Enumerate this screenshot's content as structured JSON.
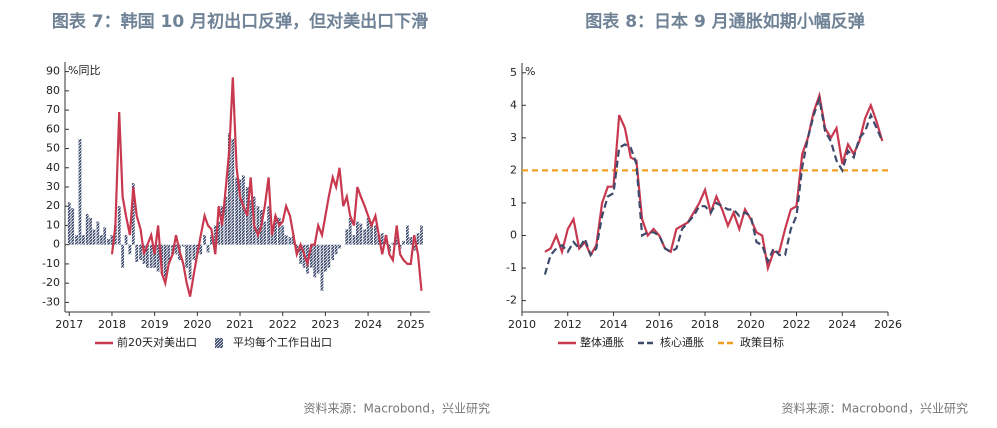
{
  "chart_data": [
    {
      "type": "combo",
      "title": "图表 7：韩国 10 月初出口反弹，但对美出口下滑",
      "source": "资料来源：Macrobond，兴业研究",
      "y_unit": "%同比",
      "xlim": [
        2017.4,
        2025.95
      ],
      "ylim": [
        -35,
        95
      ],
      "xticks": [
        {
          "value": 2017.5,
          "label": "2017"
        },
        {
          "value": 2018.5,
          "label": "2018"
        },
        {
          "value": 2019.5,
          "label": "2019"
        },
        {
          "value": 2020.5,
          "label": "2020"
        },
        {
          "value": 2021.5,
          "label": "2021"
        },
        {
          "value": 2022.5,
          "label": "2022"
        },
        {
          "value": 2023.5,
          "label": "2023"
        },
        {
          "value": 2024.5,
          "label": "2024"
        },
        {
          "value": 2025.5,
          "label": "2025"
        }
      ],
      "yticks": [
        -30,
        -20,
        -10,
        0,
        10,
        20,
        30,
        40,
        50,
        60,
        70,
        80,
        90
      ],
      "x": [
        2017.5,
        2017.58,
        2017.67,
        2017.75,
        2017.83,
        2017.92,
        2018,
        2018.08,
        2018.17,
        2018.25,
        2018.33,
        2018.42,
        2018.5,
        2018.58,
        2018.67,
        2018.75,
        2018.83,
        2018.92,
        2019,
        2019.08,
        2019.17,
        2019.25,
        2019.33,
        2019.42,
        2019.5,
        2019.58,
        2019.67,
        2019.75,
        2019.83,
        2019.92,
        2020,
        2020.08,
        2020.17,
        2020.25,
        2020.33,
        2020.42,
        2020.5,
        2020.58,
        2020.67,
        2020.75,
        2020.83,
        2020.92,
        2021,
        2021.08,
        2021.17,
        2021.25,
        2021.33,
        2021.42,
        2021.5,
        2021.58,
        2021.67,
        2021.75,
        2021.83,
        2021.92,
        2022,
        2022.08,
        2022.17,
        2022.25,
        2022.33,
        2022.42,
        2022.5,
        2022.58,
        2022.67,
        2022.75,
        2022.83,
        2022.92,
        2023,
        2023.08,
        2023.17,
        2023.25,
        2023.33,
        2023.42,
        2023.5,
        2023.58,
        2023.67,
        2023.75,
        2023.83,
        2023.92,
        2024,
        2024.08,
        2024.17,
        2024.25,
        2024.33,
        2024.42,
        2024.5,
        2024.58,
        2024.67,
        2024.75,
        2024.83,
        2024.92,
        2025,
        2025.08,
        2025.17,
        2025.25,
        2025.33,
        2025.42,
        2025.5,
        2025.58,
        2025.67,
        2025.75
      ],
      "series": [
        {
          "name": "平均每个工作日出口",
          "type": "bar",
          "color": "#3d4a6b",
          "values": [
            22,
            19,
            5,
            55,
            5,
            16,
            14,
            8,
            12,
            5,
            9,
            3,
            5,
            10,
            20,
            -12,
            5,
            -5,
            32,
            -9,
            -8,
            -10,
            -12,
            -12,
            -12,
            -14,
            -15,
            -17,
            -10,
            -5,
            -5,
            -8,
            -1,
            -12,
            -18,
            -8,
            -5,
            -5,
            5,
            -4,
            5,
            10,
            12,
            20,
            25,
            58,
            55,
            35,
            34,
            36,
            30,
            23,
            25,
            20,
            18,
            12,
            20,
            9,
            15,
            14,
            10,
            5,
            4,
            5,
            -5,
            -10,
            -12,
            -15,
            -12,
            -17,
            -15,
            -24,
            -14,
            -12,
            -8,
            -5,
            -2,
            0,
            8,
            14,
            5,
            12,
            11,
            8,
            14,
            12,
            10,
            5,
            6,
            5,
            -4,
            1,
            4,
            -2,
            2,
            10,
            4,
            -3,
            6,
            10
          ]
        },
        {
          "name": "前20天对美出口",
          "type": "line",
          "color": "#c8384f",
          "values": [
            null,
            null,
            null,
            null,
            null,
            null,
            null,
            null,
            null,
            null,
            null,
            null,
            -5,
            10,
            69,
            25,
            15,
            5,
            30,
            15,
            8,
            -5,
            0,
            5,
            -5,
            10,
            -15,
            -20,
            -10,
            -5,
            5,
            -3,
            -10,
            -20,
            -27,
            -15,
            -5,
            5,
            15,
            10,
            8,
            -5,
            20,
            10,
            30,
            50,
            87,
            40,
            25,
            20,
            15,
            35,
            10,
            5,
            10,
            20,
            35,
            5,
            15,
            10,
            12,
            20,
            15,
            5,
            -5,
            0,
            -5,
            -10,
            0,
            0,
            10,
            5,
            15,
            25,
            35,
            30,
            40,
            20,
            25,
            15,
            10,
            30,
            25,
            20,
            15,
            10,
            15,
            5,
            -5,
            5,
            -5,
            -8,
            10,
            -5,
            -8,
            -10,
            -10,
            5,
            -5,
            -24
          ]
        }
      ]
    },
    {
      "type": "line",
      "title": "图表 8：日本 9 月通胀如期小幅反弹",
      "source": "资料来源：Macrobond，兴业研究",
      "y_unit": "%",
      "xlim": [
        2010,
        2026
      ],
      "ylim": [
        -2.35,
        5.3
      ],
      "xticks": [
        2010,
        2012,
        2014,
        2016,
        2018,
        2020,
        2022,
        2024,
        2026
      ],
      "yticks": [
        -2,
        -1,
        0,
        1,
        2,
        3,
        4,
        5
      ],
      "x": [
        2011,
        2011.25,
        2011.5,
        2011.75,
        2012,
        2012.25,
        2012.5,
        2012.75,
        2013,
        2013.25,
        2013.5,
        2013.75,
        2014,
        2014.25,
        2014.5,
        2014.75,
        2015,
        2015.25,
        2015.5,
        2015.75,
        2016,
        2016.25,
        2016.5,
        2016.75,
        2017,
        2017.25,
        2017.5,
        2017.75,
        2018,
        2018.25,
        2018.5,
        2018.75,
        2019,
        2019.25,
        2019.5,
        2019.75,
        2020,
        2020.25,
        2020.5,
        2020.75,
        2021,
        2021.25,
        2021.5,
        2021.75,
        2022,
        2022.25,
        2022.5,
        2022.75,
        2023,
        2023.25,
        2023.5,
        2023.75,
        2024,
        2024.25,
        2024.5,
        2024.75,
        2025,
        2025.25,
        2025.5,
        2025.75
      ],
      "series": [
        {
          "name": "整体通胀",
          "color": "#c8384f",
          "dashed": false,
          "values": [
            -0.5,
            -0.4,
            0.0,
            -0.5,
            0.2,
            0.5,
            -0.4,
            -0.2,
            -0.6,
            -0.3,
            1.0,
            1.5,
            1.5,
            3.7,
            3.3,
            2.4,
            2.3,
            0.5,
            0.0,
            0.2,
            0.0,
            -0.4,
            -0.5,
            0.2,
            0.3,
            0.4,
            0.7,
            1.0,
            1.4,
            0.7,
            1.2,
            0.8,
            0.3,
            0.7,
            0.2,
            0.8,
            0.5,
            0.1,
            0.0,
            -1.0,
            -0.5,
            -0.5,
            0.2,
            0.8,
            0.9,
            2.5,
            3.0,
            3.8,
            4.3,
            3.3,
            3.0,
            3.3,
            2.2,
            2.8,
            2.5,
            2.9,
            3.6,
            4.0,
            3.5,
            2.9
          ]
        },
        {
          "name": "核心通胀",
          "color": "#3d4a6b",
          "dashed": true,
          "values": [
            -1.2,
            -0.6,
            -0.4,
            -0.3,
            -0.5,
            -0.2,
            -0.4,
            -0.1,
            -0.6,
            -0.4,
            0.6,
            1.2,
            1.3,
            2.7,
            2.8,
            2.7,
            2.2,
            0.0,
            0.1,
            0.1,
            0.0,
            -0.4,
            -0.5,
            -0.4,
            0.2,
            0.4,
            0.6,
            0.9,
            0.9,
            0.7,
            1.0,
            0.9,
            0.8,
            0.8,
            0.6,
            0.7,
            0.6,
            -0.2,
            -0.3,
            -0.8,
            -0.4,
            -0.6,
            -0.6,
            0.2,
            0.6,
            2.1,
            3.0,
            3.7,
            4.2,
            3.2,
            2.9,
            2.3,
            2.0,
            2.6,
            2.4,
            3.0,
            3.2,
            3.7,
            3.3,
            2.9
          ]
        }
      ],
      "reference_lines": [
        {
          "name": "政策目标",
          "value": 2,
          "color": "#f0a020"
        }
      ]
    }
  ]
}
